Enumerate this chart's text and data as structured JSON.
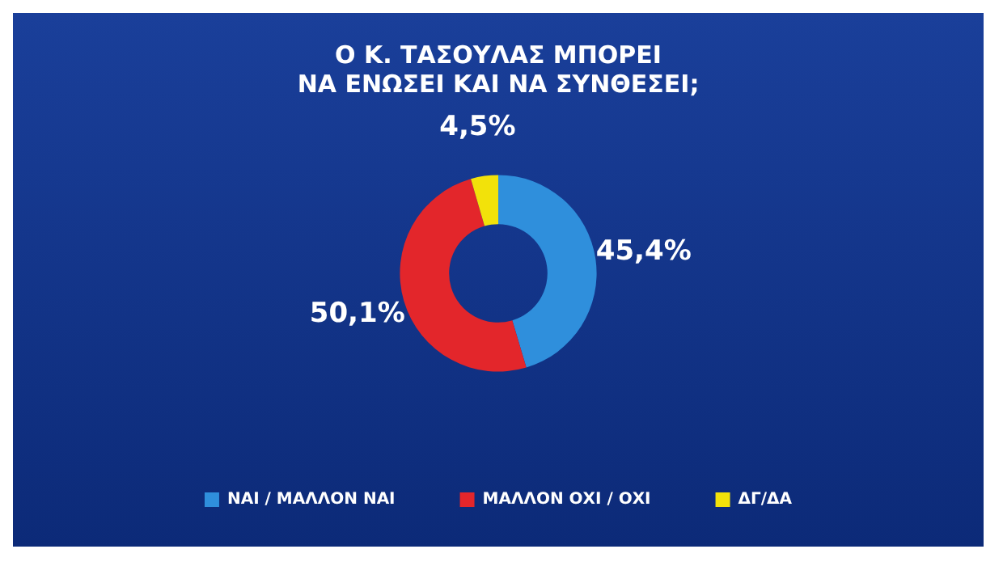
{
  "chart_data": {
    "type": "donut",
    "title": "Ο Κ. ΤΑΣΟΥΛΑΣ ΜΠΟΡΕΙ\nΝΑ ΕΝΩΣΕΙ ΚΑΙ ΝΑ ΣΥΝΘΕΣΕΙ;",
    "categories": [
      "ΝΑΙ / ΜΑΛΛΟΝ ΝΑΙ",
      "ΜΑΛΛΟΝ ΟΧΙ / ΟΧΙ",
      "ΔΓ/ΔΑ"
    ],
    "values": [
      45.4,
      50.1,
      4.5
    ],
    "value_labels": [
      "45,4%",
      "50,1%",
      "4,5%"
    ],
    "colors": [
      "#2f8fdc",
      "#e3262b",
      "#f2e20a"
    ],
    "legend": "bottom"
  }
}
